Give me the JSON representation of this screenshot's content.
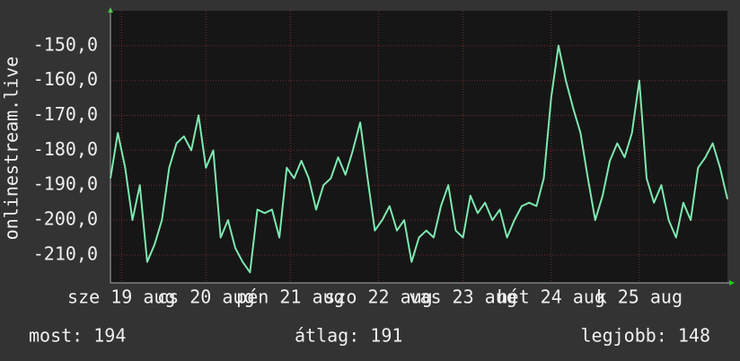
{
  "chart_data": {
    "type": "line",
    "y_label": "onlinestream.live",
    "x": [
      0,
      2,
      4,
      6,
      8,
      10,
      12,
      14,
      16,
      18,
      20,
      22,
      24,
      26,
      28,
      30,
      32,
      34,
      36,
      38,
      40,
      42,
      44,
      46,
      48,
      50,
      52,
      54,
      56,
      58,
      60,
      62,
      64,
      66,
      68,
      70,
      72,
      74,
      76,
      78,
      80,
      82,
      84,
      86,
      88,
      90,
      92,
      94,
      96,
      98,
      100,
      102,
      104,
      106,
      108,
      110,
      112,
      114,
      116,
      118,
      120,
      122,
      124,
      126,
      128,
      130,
      132,
      134,
      136,
      138,
      140,
      142,
      144,
      146,
      148,
      150,
      152,
      154,
      156,
      158,
      160,
      162,
      164,
      166,
      168
    ],
    "values": [
      -188,
      -175,
      -185,
      -200,
      -190,
      -212,
      -207,
      -200,
      -185,
      -178,
      -176,
      -180,
      -170,
      -185,
      -180,
      -205,
      -200,
      -208,
      -212,
      -215,
      -197,
      -198,
      -197,
      -205,
      -185,
      -188,
      -183,
      -188,
      -197,
      -190,
      -188,
      -182,
      -187,
      -180,
      -172,
      -188,
      -203,
      -200,
      -196,
      -203,
      -200,
      -212,
      -205,
      -203,
      -205,
      -196,
      -190,
      -203,
      -205,
      -193,
      -198,
      -195,
      -200,
      -197,
      -205,
      -200,
      -196,
      -195,
      -196,
      -188,
      -165,
      -150,
      -160,
      -168,
      -175,
      -188,
      -200,
      -193,
      -183,
      -178,
      -182,
      -175,
      -160,
      -188,
      -195,
      -190,
      -200,
      -205,
      -195,
      -200,
      -185,
      -182,
      -178,
      -185,
      -194
    ],
    "color": "#7de8b0",
    "xlim": [
      0,
      168
    ],
    "xticks": [
      {
        "value": 3,
        "label": "sze 19 aug"
      },
      {
        "value": 26,
        "label": "cs 20 aug"
      },
      {
        "value": 49,
        "label": "pén 21 aug"
      },
      {
        "value": 73,
        "label": "szo 22 aug"
      },
      {
        "value": 96,
        "label": "vas 23 aug"
      },
      {
        "value": 120,
        "label": "hét 24 aug"
      },
      {
        "value": 144,
        "label": "k 25 aug"
      }
    ],
    "ylim": [
      -218,
      -140
    ],
    "yticks": [
      {
        "value": -150,
        "label": "-150,0"
      },
      {
        "value": -160,
        "label": "-160,0"
      },
      {
        "value": -170,
        "label": "-170,0"
      },
      {
        "value": -180,
        "label": "-180,0"
      },
      {
        "value": -190,
        "label": "-190,0"
      },
      {
        "value": -200,
        "label": "-200,0"
      },
      {
        "value": -210,
        "label": "-210,0"
      }
    ],
    "grid": true,
    "annotations": [
      "most: 194",
      "átlag: 191",
      "legjobb: 148"
    ]
  }
}
